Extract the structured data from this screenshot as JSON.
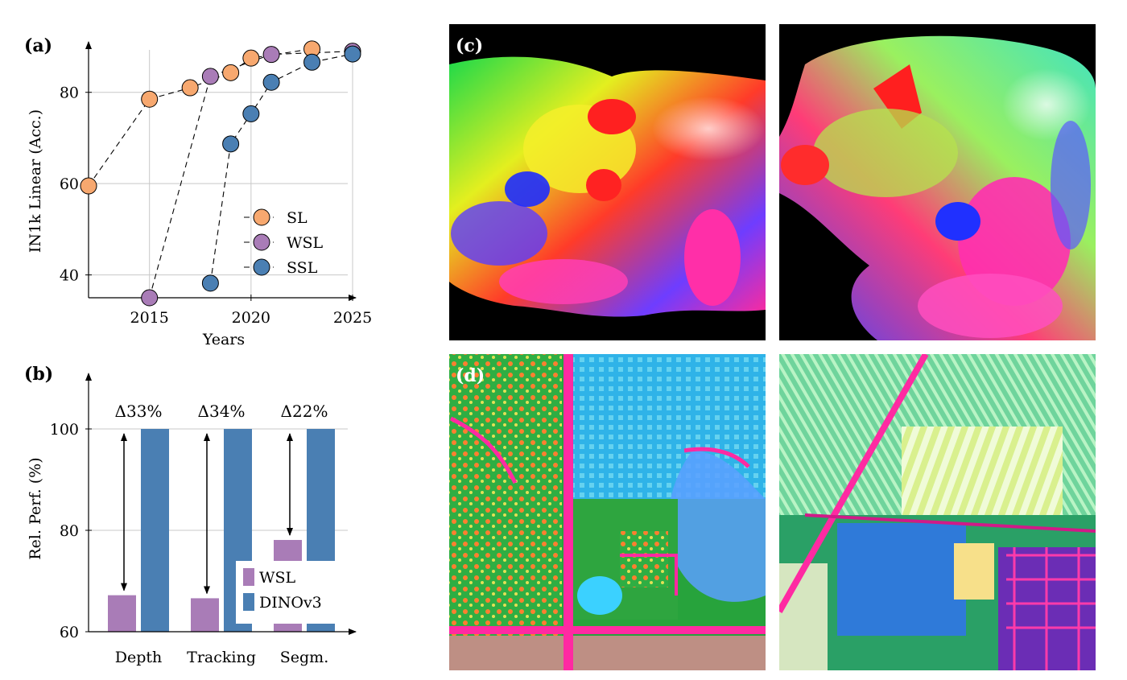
{
  "panels": {
    "a": "(a)",
    "b": "(b)",
    "c": "(c)",
    "d": "(d)"
  },
  "chart_data": [
    {
      "type": "scatter",
      "panel": "(a)",
      "xlabel": "Years",
      "ylabel": "IN1k Linear (Acc.)",
      "xlim": [
        2012,
        2025
      ],
      "ylim": [
        35,
        90
      ],
      "xticks": [
        2015,
        2020,
        2025
      ],
      "yticks": [
        40,
        60,
        80
      ],
      "grid": true,
      "legend": "bottom-right",
      "series": [
        {
          "name": "SL",
          "color": "#f7a86f",
          "points": [
            [
              2012,
              59.5
            ],
            [
              2015,
              78.5
            ],
            [
              2017,
              81
            ],
            [
              2019,
              84.3
            ],
            [
              2020,
              87.5
            ],
            [
              2023,
              89.5
            ]
          ]
        },
        {
          "name": "WSL",
          "color": "#a97cb7",
          "points": [
            [
              2015,
              35
            ],
            [
              2018,
              83.5
            ],
            [
              2021,
              88.3
            ],
            [
              2025,
              89
            ]
          ]
        },
        {
          "name": "SSL",
          "color": "#4a7fb3",
          "points": [
            [
              2018,
              38.2
            ],
            [
              2019,
              68.7
            ],
            [
              2020,
              75.3
            ],
            [
              2021,
              82.2
            ],
            [
              2023,
              86.6
            ],
            [
              2025,
              88.4
            ]
          ]
        }
      ]
    },
    {
      "type": "bar",
      "panel": "(b)",
      "ylabel": "Rel. Perf. (%)",
      "categories": [
        "Depth",
        "Tracking",
        "Segm."
      ],
      "ylim": [
        60,
        110
      ],
      "yticks": [
        60,
        80,
        100
      ],
      "grid": true,
      "legend": "bottom-right",
      "series": [
        {
          "name": "WSL",
          "color": "#a97cb7",
          "values": [
            67.2,
            66.6,
            78.1
          ]
        },
        {
          "name": "DINOv3",
          "color": "#4a7fb3",
          "values": [
            100,
            100,
            100
          ]
        }
      ],
      "annotations": [
        "Δ33%",
        "Δ34%",
        "Δ22%"
      ]
    }
  ],
  "images": {
    "c_left": "cat feature map",
    "c_right": "cat feature map",
    "d_left": "satellite feature map",
    "d_right": "satellite feature map"
  }
}
